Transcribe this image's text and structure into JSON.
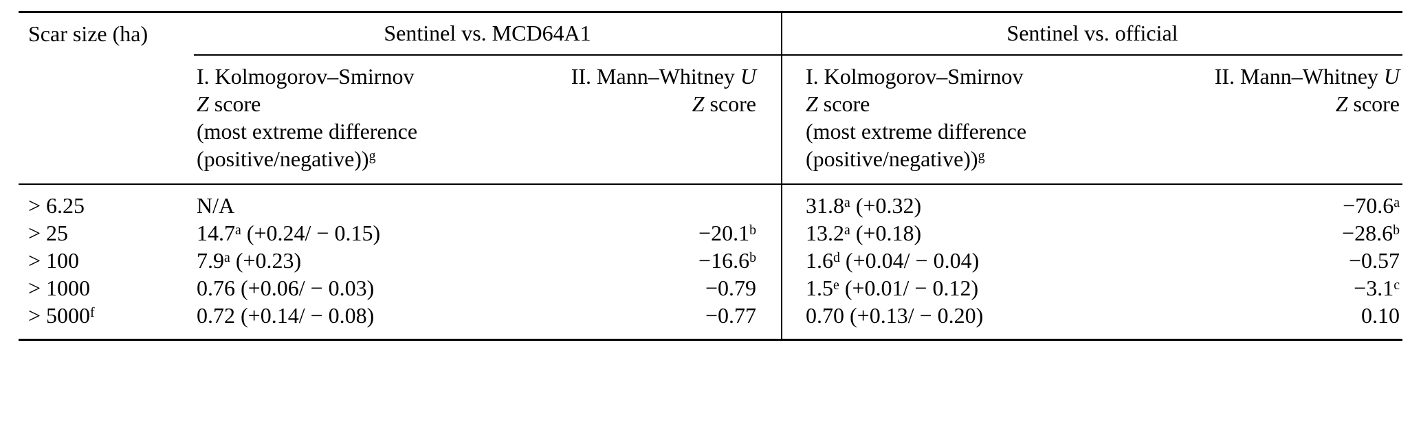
{
  "table": {
    "size_header": "Scar size (ha)",
    "groups": [
      "Sentinel vs. MCD64A1",
      "Sentinel vs. official"
    ],
    "headers": {
      "ks": {
        "title": "I. Kolmogorov–Smirnov",
        "z": "Z",
        "z_rest": " score",
        "note1": "(most extreme difference",
        "note2": "(positive/negative))",
        "note_sup": "g"
      },
      "mw": {
        "prefix": "II. Mann–Whitney ",
        "u": "U",
        "z": "Z",
        "z_rest": " score"
      }
    },
    "rows": [
      {
        "size": {
          "pre": "> 6.25",
          "sup": ""
        },
        "ks_mcd": {
          "pre": "N/A",
          "sup": "",
          "post": ""
        },
        "mw_mcd": {
          "pre": "",
          "sup": ""
        },
        "ks_off": {
          "pre": "31.8",
          "sup": "a",
          "post": " (+0.32)"
        },
        "mw_off": {
          "pre": "−70.6",
          "sup": "a"
        }
      },
      {
        "size": {
          "pre": "> 25",
          "sup": ""
        },
        "ks_mcd": {
          "pre": "14.7",
          "sup": "a",
          "post": " (+0.24/ − 0.15)"
        },
        "mw_mcd": {
          "pre": "−20.1",
          "sup": "b"
        },
        "ks_off": {
          "pre": "13.2",
          "sup": "a",
          "post": " (+0.18)"
        },
        "mw_off": {
          "pre": "−28.6",
          "sup": "b"
        }
      },
      {
        "size": {
          "pre": "> 100",
          "sup": ""
        },
        "ks_mcd": {
          "pre": "7.9",
          "sup": "a",
          "post": " (+0.23)"
        },
        "mw_mcd": {
          "pre": "−16.6",
          "sup": "b"
        },
        "ks_off": {
          "pre": "1.6",
          "sup": "d",
          "post": " (+0.04/ − 0.04)"
        },
        "mw_off": {
          "pre": "−0.57",
          "sup": ""
        }
      },
      {
        "size": {
          "pre": "> 1000",
          "sup": ""
        },
        "ks_mcd": {
          "pre": "0.76 (+0.06/ − 0.03)",
          "sup": "",
          "post": ""
        },
        "mw_mcd": {
          "pre": "−0.79",
          "sup": ""
        },
        "ks_off": {
          "pre": "1.5",
          "sup": "e",
          "post": " (+0.01/ − 0.12)"
        },
        "mw_off": {
          "pre": "−3.1",
          "sup": "c"
        }
      },
      {
        "size": {
          "pre": "> 5000",
          "sup": "f"
        },
        "ks_mcd": {
          "pre": "0.72 (+0.14/ − 0.08)",
          "sup": "",
          "post": ""
        },
        "mw_mcd": {
          "pre": "−0.77",
          "sup": ""
        },
        "ks_off": {
          "pre": "0.70 (+0.13/ − 0.20)",
          "sup": "",
          "post": ""
        },
        "mw_off": {
          "pre": "0.10",
          "sup": ""
        }
      }
    ]
  }
}
